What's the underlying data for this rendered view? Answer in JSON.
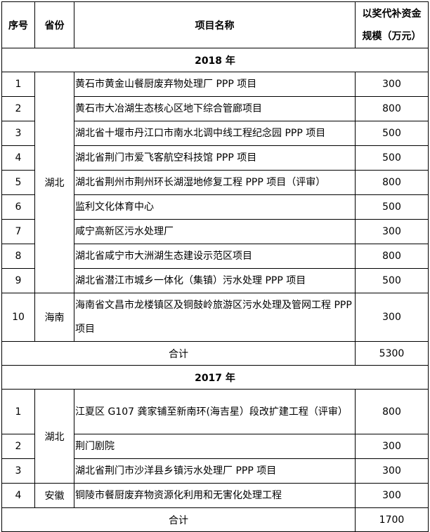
{
  "header": {
    "seq": "序号",
    "province": "省份",
    "project": "项目名称",
    "amount": "以奖代补资金规模（万元）",
    "amount_line1": "以奖代补资金",
    "amount_line2": "规模（万元）"
  },
  "sections": [
    {
      "year": "2018 年",
      "groups": [
        {
          "province": "湖北",
          "rows": [
            {
              "seq": "1",
              "name": "黄石市黄金山餐厨废弃物处理厂 PPP 项目",
              "amount": "300"
            },
            {
              "seq": "2",
              "name": "黄石市大冶湖生态核心区地下综合管廊项目",
              "amount": "800"
            },
            {
              "seq": "3",
              "name": "湖北省十堰市丹江口市南水北调中线工程纪念园 PPP 项目",
              "amount": "500"
            },
            {
              "seq": "4",
              "name": "湖北省荆门市爱飞客航空科技馆 PPP 项目",
              "amount": "500"
            },
            {
              "seq": "5",
              "name": "湖北省荆州市荆州环长湖湿地修复工程 PPP 项目（评审）",
              "amount": "800"
            },
            {
              "seq": "6",
              "name": "监利文化体育中心",
              "amount": "500"
            },
            {
              "seq": "7",
              "name": "咸宁高新区污水处理厂",
              "amount": "300"
            },
            {
              "seq": "8",
              "name": "湖北省咸宁市大洲湖生态建设示范区项目",
              "amount": "800"
            },
            {
              "seq": "9",
              "name": "湖北省潜江市城乡一体化（集镇）污水处理 PPP 项目",
              "amount": "500"
            }
          ]
        },
        {
          "province": "海南",
          "rows": [
            {
              "seq": "10",
              "name": "海南省文昌市龙楼镇区及铜鼓岭旅游区污水处理及管网工程 PPP 项目",
              "amount": "300"
            }
          ]
        }
      ],
      "total_label": "合计",
      "total": "5300"
    },
    {
      "year": "2017 年",
      "groups": [
        {
          "province": "湖北",
          "rows": [
            {
              "seq": "1",
              "name": "江夏区 G107 龚家铺至新南环(海吉星）段改扩建工程（评审）",
              "amount": "800"
            },
            {
              "seq": "2",
              "name": "荆门剧院",
              "amount": "300"
            },
            {
              "seq": "3",
              "name": "湖北省荆门市沙洋县乡镇污水处理厂 PPP 项目",
              "amount": "300"
            }
          ]
        },
        {
          "province": "安徽",
          "rows": [
            {
              "seq": "4",
              "name": "铜陵市餐厨废弃物资源化利用和无害化处理工程",
              "amount": "300"
            }
          ]
        }
      ],
      "total_label": "合计",
      "total": "1700"
    }
  ]
}
